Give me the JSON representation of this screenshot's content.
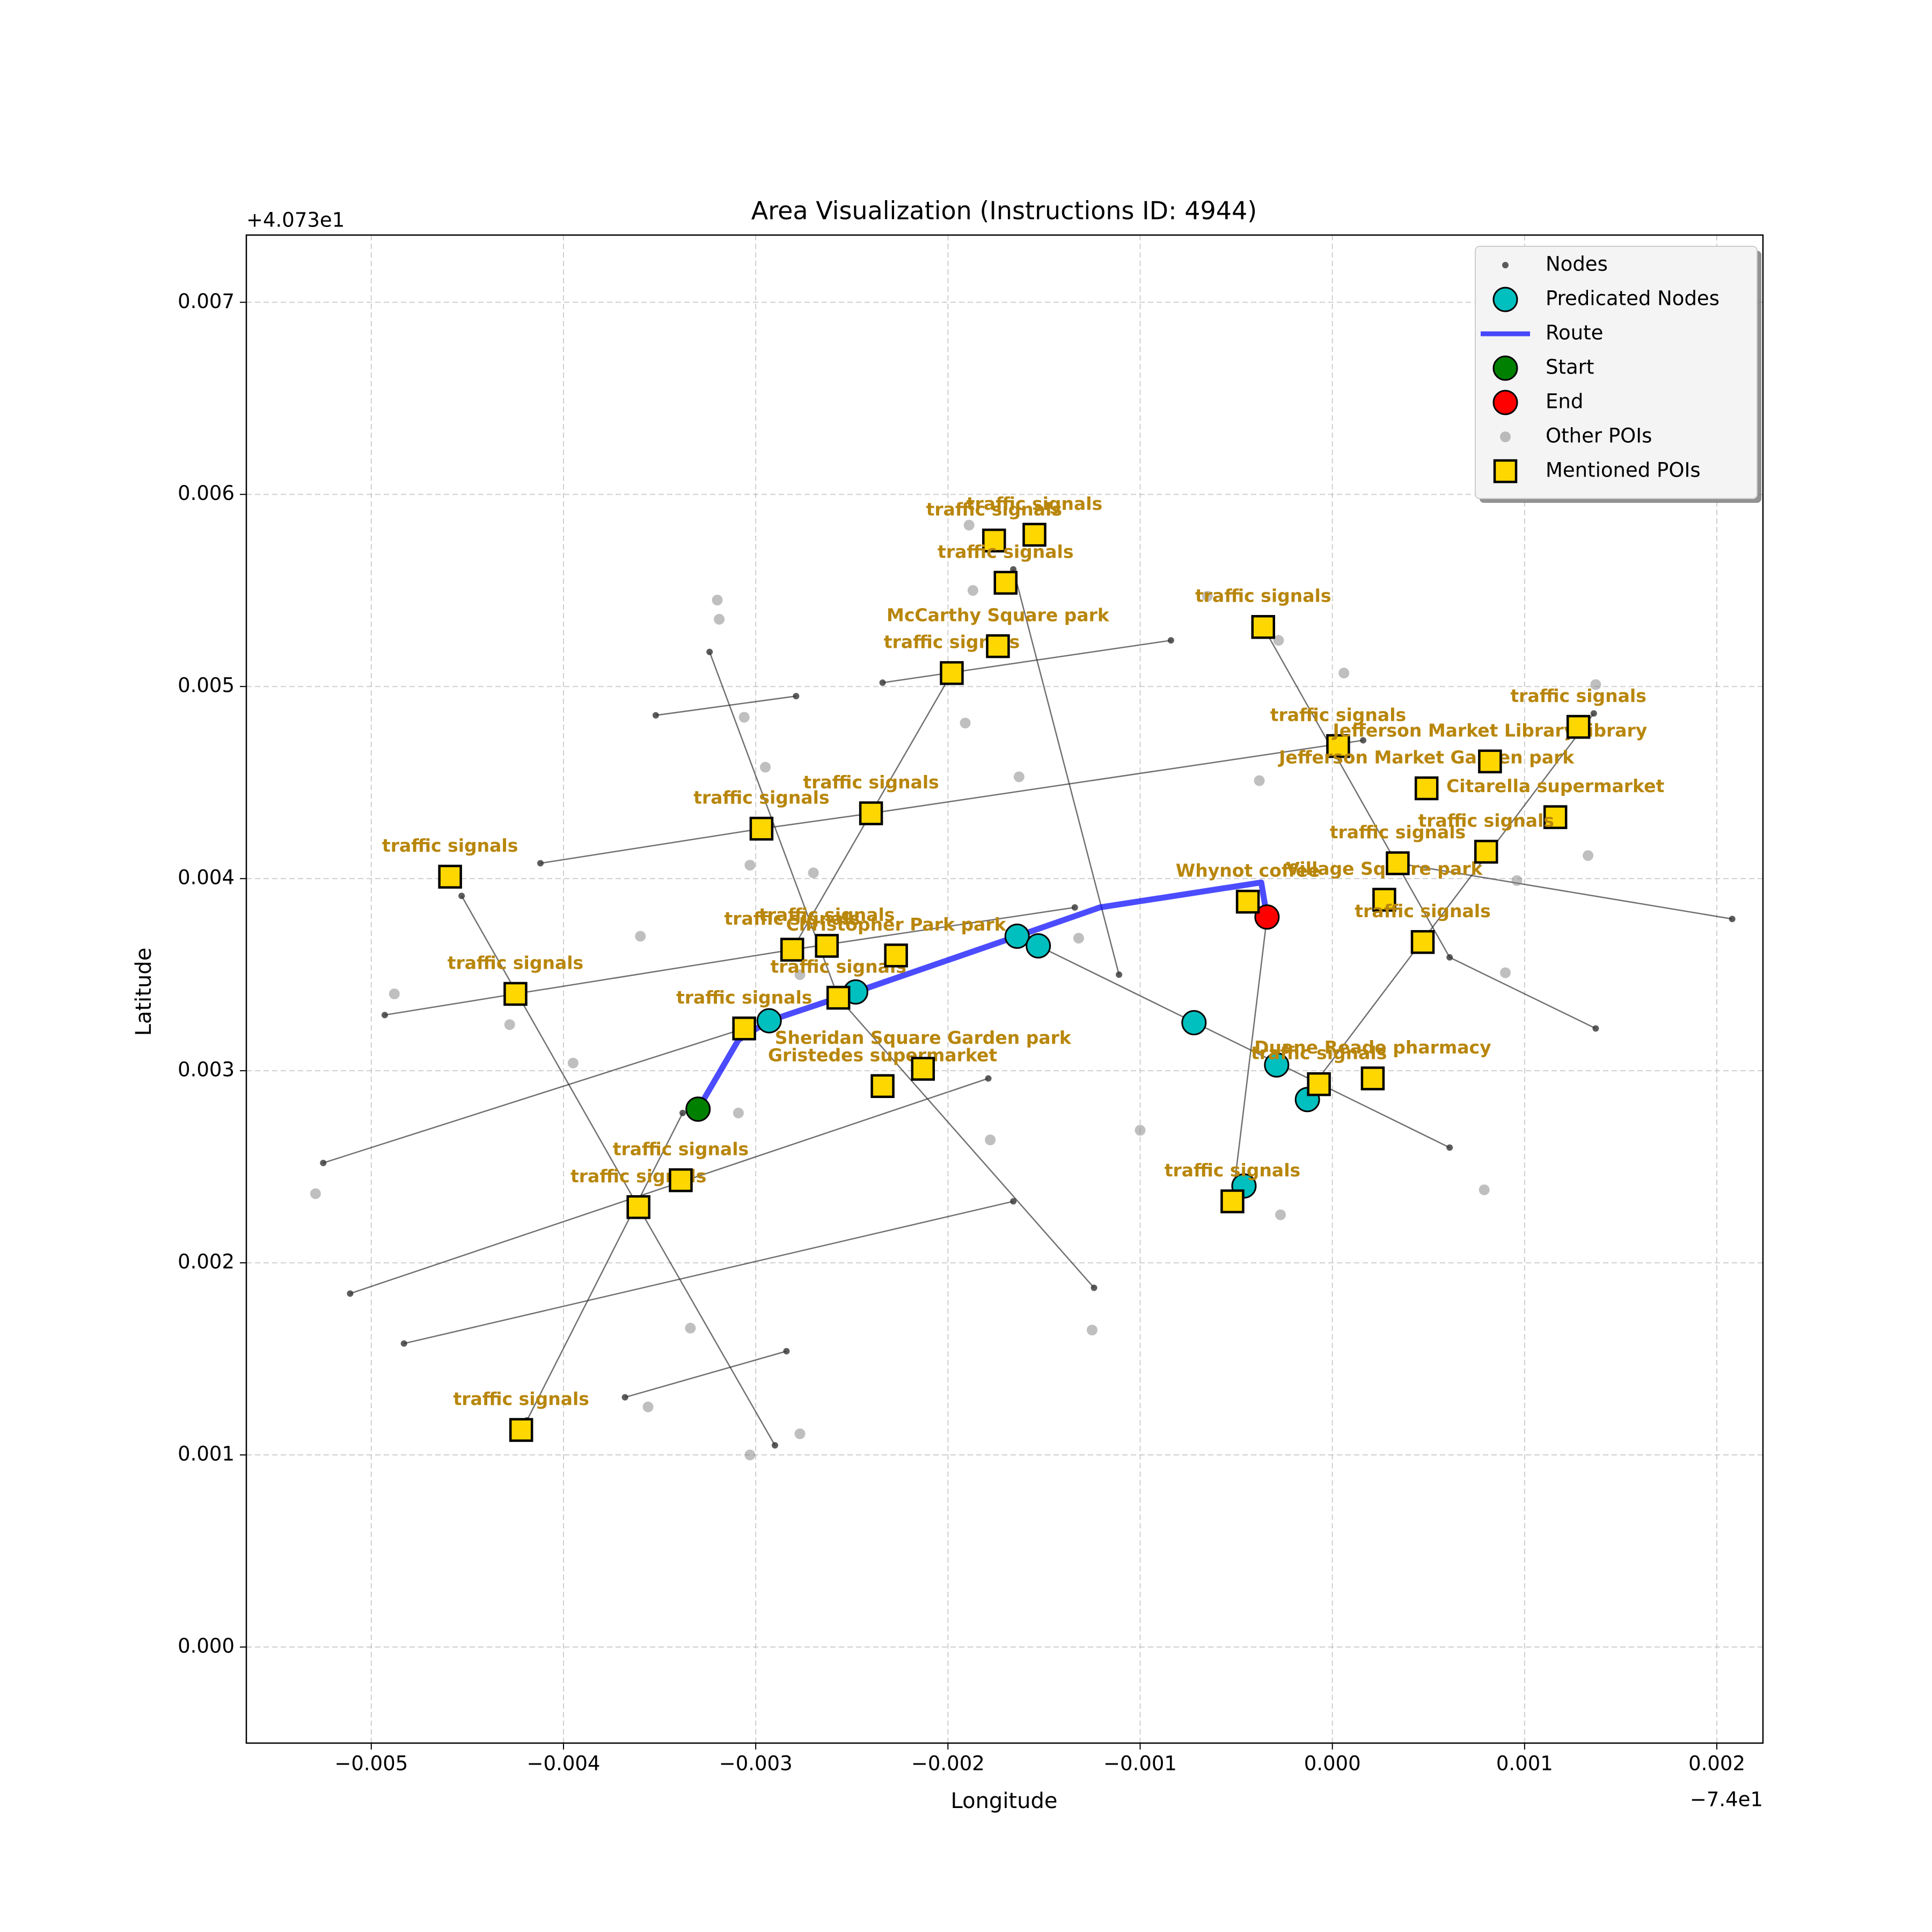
{
  "chart_data": {
    "type": "scatter",
    "title": "Area Visualization (Instructions ID: 4944)",
    "xlabel": "Longitude",
    "ylabel": "Latitude",
    "x_offset_label": "−7.4e1",
    "y_offset_label": "+4.073e1",
    "xlim": [
      -0.00565,
      0.00224
    ],
    "ylim": [
      -0.0005,
      0.00735
    ],
    "xticks": [
      {
        "value": -0.005,
        "label": "−0.005"
      },
      {
        "value": -0.004,
        "label": "−0.004"
      },
      {
        "value": -0.003,
        "label": "−0.003"
      },
      {
        "value": -0.002,
        "label": "−0.002"
      },
      {
        "value": -0.001,
        "label": "−0.001"
      },
      {
        "value": 0,
        "label": "0.000"
      },
      {
        "value": 0.001,
        "label": "0.001"
      },
      {
        "value": 0.002,
        "label": "0.002"
      }
    ],
    "yticks": [
      {
        "value": 0,
        "label": "0.000"
      },
      {
        "value": 0.001,
        "label": "0.001"
      },
      {
        "value": 0.002,
        "label": "0.002"
      },
      {
        "value": 0.003,
        "label": "0.003"
      },
      {
        "value": 0.004,
        "label": "0.004"
      },
      {
        "value": 0.005,
        "label": "0.005"
      },
      {
        "value": 0.006,
        "label": "0.006"
      },
      {
        "value": 0.007,
        "label": "0.007"
      }
    ],
    "grid": true,
    "legend": "upper right",
    "label_color": "#b8860b",
    "series": [
      {
        "name": "Nodes",
        "marker": "dot-line",
        "color": "#333333",
        "x": [
          -0.00412,
          -0.00297,
          -0.0024,
          0.00016,
          null,
          -0.00493,
          -0.00425,
          -0.00281,
          -0.00134,
          null,
          -0.00525,
          -0.00306,
          null,
          -0.00511,
          -0.00179,
          null,
          -0.00483,
          -0.00166,
          null,
          -0.00368,
          -0.00284,
          null,
          -0.00352,
          -0.00279,
          null,
          -0.00234,
          -0.00084,
          null,
          -0.00324,
          -0.00257,
          -0.00124,
          null,
          -0.00453,
          -0.00361,
          -0.0029,
          null,
          -0.00419,
          -0.00338,
          null,
          -0.00281,
          -0.00198,
          null,
          -0.00166,
          -0.00111,
          null,
          -0.00153,
          0.00061,
          null,
          -0.00036,
          0.00061,
          0.00137,
          null,
          -0.00052,
          -0.00034,
          null,
          -0.00017,
          0.00136,
          null,
          0.00034,
          0.00208
        ],
        "y": [
          0.00408,
          0.00426,
          0.00434,
          0.00472,
          null,
          0.00329,
          0.0034,
          0.00363,
          0.00385,
          null,
          0.00252,
          0.00322,
          null,
          0.00184,
          0.00296,
          null,
          0.00158,
          0.00232,
          null,
          0.0013,
          0.00154,
          null,
          0.00485,
          0.00495,
          null,
          0.00502,
          0.00524,
          null,
          0.00518,
          0.00338,
          0.00187,
          null,
          0.00391,
          0.00229,
          0.00105,
          null,
          0.00118,
          0.00278,
          null,
          0.00363,
          0.00507,
          null,
          0.00561,
          0.0035,
          null,
          0.00365,
          0.0026,
          null,
          0.00531,
          0.00359,
          0.00322,
          null,
          0.00232,
          0.0038,
          null,
          0.00283,
          0.00486,
          null,
          0.00408,
          0.00379
        ]
      },
      {
        "name": "Other POIs",
        "marker": "faint",
        "color": "#808080",
        "x": [
          -0.0032,
          -0.00319,
          -0.00295,
          -0.00306,
          -0.00189,
          -0.00187,
          -0.00191,
          -0.00163,
          -0.00065,
          -0.00028,
          6e-05,
          -0.00038,
          -0.00303,
          -0.0027,
          -0.0036,
          -0.00488,
          -0.00428,
          -0.00395,
          -0.00529,
          -0.00303,
          -0.00277,
          -0.00356,
          -0.00334,
          -0.00178,
          -0.00125,
          -0.001,
          -0.00027,
          0.00079,
          0.0009,
          0.00096,
          0.00137,
          0.00133,
          -0.00132,
          -0.00277,
          -0.00309
        ],
        "y": [
          0.00545,
          0.00535,
          0.00458,
          0.00484,
          0.00584,
          0.0055,
          0.00481,
          0.00453,
          0.00547,
          0.00524,
          0.00507,
          0.00451,
          0.00407,
          0.00403,
          0.0037,
          0.0034,
          0.00324,
          0.00304,
          0.00236,
          0.001,
          0.00111,
          0.00125,
          0.00166,
          0.00264,
          0.00165,
          0.00269,
          0.00225,
          0.00238,
          0.00351,
          0.00399,
          0.00501,
          0.00412,
          0.00369,
          0.0035,
          0.00278
        ]
      },
      {
        "name": "Route",
        "marker": "line",
        "color": "#0000ff",
        "x": [
          -0.0033,
          -0.00309,
          -0.00293,
          -0.00248,
          -0.00164,
          -0.00121,
          -0.00037,
          -0.00034
        ],
        "y": [
          0.0028,
          0.00316,
          0.00326,
          0.00341,
          0.0037,
          0.00385,
          0.00398,
          0.0038
        ]
      },
      {
        "name": "Predicated Nodes",
        "marker": "circle",
        "color": "#00bfbf",
        "x": [
          -0.00293,
          -0.00248,
          -0.00164,
          -0.00153,
          -0.00072,
          -0.00029,
          -0.00013,
          -0.00046
        ],
        "y": [
          0.00326,
          0.00341,
          0.0037,
          0.00365,
          0.00325,
          0.00303,
          0.00285,
          0.0024
        ]
      },
      {
        "name": "Start",
        "marker": "circle",
        "color": "#008000",
        "x": [
          -0.0033
        ],
        "y": [
          0.0028
        ]
      },
      {
        "name": "End",
        "marker": "circle",
        "color": "#ff0000",
        "x": [
          -0.00034
        ],
        "y": [
          0.0038
        ]
      },
      {
        "name": "Mentioned POIs",
        "marker": "square",
        "color": "#ffd700",
        "x": [
          -0.00459,
          -0.00425,
          -0.00422,
          -0.00361,
          -0.00339,
          -0.00306,
          -0.00297,
          -0.00281,
          -0.00263,
          -0.00257,
          -0.0024,
          -0.00227,
          -0.00234,
          -0.00213,
          -0.00198,
          -0.00174,
          -0.00176,
          -0.00155,
          -0.0017,
          -0.00036,
          -0.00044,
          -0.00052,
          -7e-05,
          0.00021,
          3e-05,
          0.00027,
          0.00034,
          0.00047,
          0.00049,
          0.00116,
          0.00082,
          0.0008,
          0.00128
        ],
        "y": [
          0.00401,
          0.0034,
          0.00113,
          0.00229,
          0.00243,
          0.00322,
          0.00426,
          0.00363,
          0.00365,
          0.00338,
          0.00434,
          0.0036,
          0.00292,
          0.00301,
          0.00507,
          0.00521,
          0.00576,
          0.00579,
          0.00554,
          0.00531,
          0.00388,
          0.00232,
          0.00293,
          0.00296,
          0.00469,
          0.00389,
          0.00408,
          0.00367,
          0.00447,
          0.00432,
          0.00461,
          0.00414,
          0.00479
        ],
        "labels": [
          "traffic signals",
          "traffic signals",
          "traffic signals",
          "traffic signals",
          "traffic signals",
          "traffic signals",
          "traffic signals",
          "traffic signals",
          "traffic signals",
          "traffic signals",
          "traffic signals",
          "Christopher Park   park",
          "Gristedes   supermarket",
          "Sheridan Square Garden   park",
          "traffic signals",
          "McCarthy Square   park",
          "traffic signals",
          "traffic signals",
          "traffic signals",
          "traffic signals",
          "Whynot coffee",
          "traffic signals",
          "traffic signals",
          "Duane Reade   pharmacy",
          "traffic signals",
          "Village Square   park",
          "traffic signals",
          "traffic signals",
          "Jefferson Market Garden   park",
          "Citarella   supermarket",
          "Jefferson Market Library   library",
          "traffic signals",
          "traffic signals"
        ]
      }
    ]
  }
}
